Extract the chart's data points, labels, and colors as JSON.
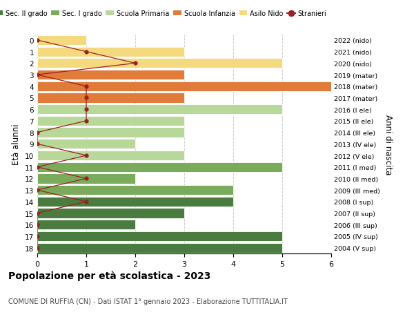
{
  "ages": [
    18,
    17,
    16,
    15,
    14,
    13,
    12,
    11,
    10,
    9,
    8,
    7,
    6,
    5,
    4,
    3,
    2,
    1,
    0
  ],
  "right_labels": [
    "2004 (V sup)",
    "2005 (IV sup)",
    "2006 (III sup)",
    "2007 (II sup)",
    "2008 (I sup)",
    "2009 (III med)",
    "2010 (II med)",
    "2011 (I med)",
    "2012 (V ele)",
    "2013 (IV ele)",
    "2014 (III ele)",
    "2015 (II ele)",
    "2016 (I ele)",
    "2017 (mater)",
    "2018 (mater)",
    "2019 (mater)",
    "2020 (nido)",
    "2021 (nido)",
    "2022 (nido)"
  ],
  "bar_values": [
    5,
    5,
    2,
    3,
    4,
    4,
    2,
    5,
    3,
    2,
    3,
    3,
    5,
    3,
    6,
    3,
    5,
    3,
    1
  ],
  "bar_colors": [
    "#4a7c3f",
    "#4a7c3f",
    "#4a7c3f",
    "#4a7c3f",
    "#4a7c3f",
    "#7aab5a",
    "#7aab5a",
    "#7aab5a",
    "#b8d89a",
    "#b8d89a",
    "#b8d89a",
    "#b8d89a",
    "#b8d89a",
    "#e07b39",
    "#e07b39",
    "#e07b39",
    "#f5d97e",
    "#f5d97e",
    "#f5d97e"
  ],
  "stranieri_values": [
    0,
    0,
    0,
    0,
    1,
    0,
    1,
    0,
    1,
    0,
    0,
    1,
    1,
    1,
    1,
    0,
    2,
    1,
    0
  ],
  "stranieri_color": "#9b2020",
  "legend_items": [
    {
      "label": "Sec. II grado",
      "color": "#4a7c3f"
    },
    {
      "label": "Sec. I grado",
      "color": "#7aab5a"
    },
    {
      "label": "Scuola Primaria",
      "color": "#b8d89a"
    },
    {
      "label": "Scuola Infanzia",
      "color": "#e07b39"
    },
    {
      "label": "Asilo Nido",
      "color": "#f5d97e"
    },
    {
      "label": "Stranieri",
      "color": "#9b2020"
    }
  ],
  "ylabel": "Età alunni",
  "right_ylabel": "Anni di nascita",
  "title": "Popolazione per età scolastica - 2023",
  "subtitle": "COMUNE DI RUFFIA (CN) - Dati ISTAT 1° gennaio 2023 - Elaborazione TUTTITALIA.IT",
  "xlim": [
    0,
    6
  ],
  "ylim_min": -0.5,
  "ylim_max": 18.5,
  "bar_height": 0.85,
  "background_color": "#ffffff",
  "grid_color": "#cccccc"
}
